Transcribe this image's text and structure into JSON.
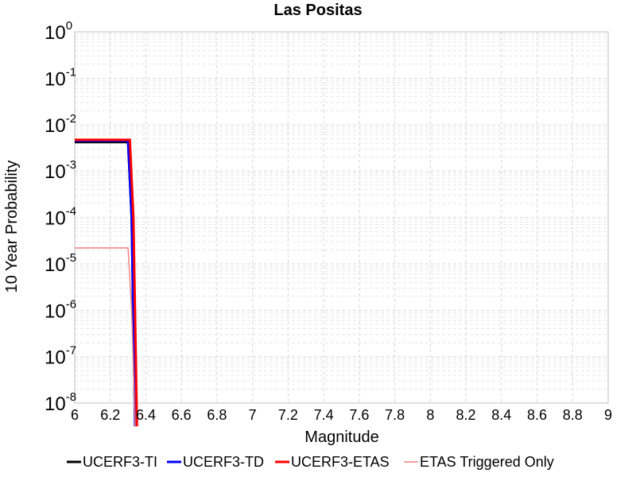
{
  "chart_data": {
    "type": "line",
    "title": "Las Positas",
    "xlabel": "Magnitude",
    "ylabel": "10 Year Probability",
    "xlim": [
      6,
      9
    ],
    "ylim": [
      1e-08,
      1
    ],
    "y_scale": "log",
    "grid": true,
    "legend_position": "bottom",
    "x_ticks": [
      "6",
      "6.2",
      "6.4",
      "6.6",
      "6.8",
      "7",
      "7.2",
      "7.4",
      "7.6",
      "7.8",
      "8",
      "8.2",
      "8.4",
      "8.6",
      "8.8",
      "9"
    ],
    "y_ticks": [
      {
        "base": "10",
        "exp": "0"
      },
      {
        "base": "10",
        "exp": "-1"
      },
      {
        "base": "10",
        "exp": "-2"
      },
      {
        "base": "10",
        "exp": "-3"
      },
      {
        "base": "10",
        "exp": "-4"
      },
      {
        "base": "10",
        "exp": "-5"
      },
      {
        "base": "10",
        "exp": "-6"
      },
      {
        "base": "10",
        "exp": "-7"
      },
      {
        "base": "10",
        "exp": "-8"
      }
    ],
    "series": [
      {
        "name": "UCERF3-TI",
        "color": "#000000",
        "x": [
          6.0,
          6.3,
          6.32,
          6.34
        ],
        "y": [
          0.0042,
          0.0042,
          0.0001,
          1e-09
        ]
      },
      {
        "name": "UCERF3-TD",
        "color": "#0000ff",
        "x": [
          6.0,
          6.3,
          6.32,
          6.34
        ],
        "y": [
          0.0045,
          0.0045,
          0.0001,
          1e-09
        ]
      },
      {
        "name": "UCERF3-ETAS",
        "color": "#ff0000",
        "x": [
          6.0,
          6.31,
          6.33,
          6.35
        ],
        "y": [
          0.0047,
          0.0047,
          0.0001,
          1e-09
        ]
      },
      {
        "name": "ETAS Triggered Only",
        "color": "#f08080",
        "x": [
          6.0,
          6.3,
          6.32,
          6.34
        ],
        "y": [
          2.2e-05,
          2.2e-05,
          1e-06,
          1e-09
        ]
      }
    ]
  }
}
